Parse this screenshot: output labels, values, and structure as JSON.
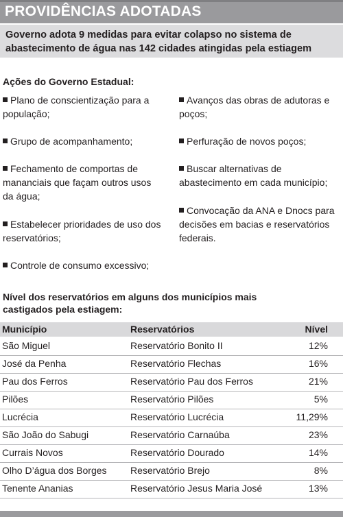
{
  "banner": {
    "title": "PROVIDÊNCIAS ADOTADAS"
  },
  "headline": {
    "line1": "Governo adota 9 medidas para evitar colapso no sistema de",
    "line2": "abastecimento de água nas 142 cidades atingidas pela estiagem"
  },
  "actions": {
    "title": "Ações do Governo Estadual:",
    "left": [
      {
        "lines": [
          "Plano de conscientização para a",
          "população;"
        ]
      },
      {
        "lines": [
          "Grupo de acompanhamento;"
        ]
      },
      {
        "lines": [
          "Fechamento de comportas de",
          "mananciais que façam outros usos",
          "da água;"
        ]
      },
      {
        "lines": [
          "Estabelecer prioridades de uso dos",
          "reservatórios;"
        ]
      },
      {
        "lines": [
          "Controle de consumo excessivo;"
        ]
      }
    ],
    "right": [
      {
        "lines": [
          "Avanços das obras de adutoras e",
          "poços;"
        ]
      },
      {
        "lines": [
          "Perfuração de novos poços;"
        ]
      },
      {
        "lines": [
          "Buscar alternativas de",
          "abastecimento em cada município;"
        ]
      },
      {
        "lines": [
          "Convocação da ANA e Dnocs para",
          "decisões em bacias e reservatórios",
          "federais."
        ]
      }
    ]
  },
  "table": {
    "title_line1": "Nível dos reservatórios em alguns dos  municípios mais",
    "title_line2": "castigados pela estiagem:",
    "headers": {
      "municipio": "Município",
      "reservatorios": "Reservatórios",
      "nivel": "Nível"
    },
    "rows": [
      {
        "municipio": "São Miguel",
        "reservatorio": "Reservatório Bonito II",
        "nivel": "12%"
      },
      {
        "municipio": "José da Penha",
        "reservatorio": "Reservatório Flechas",
        "nivel": "16%"
      },
      {
        "municipio": "Pau dos Ferros",
        "reservatorio": "Reservatório Pau dos Ferros",
        "nivel": "21%"
      },
      {
        "municipio": "Pilões",
        "reservatorio": "Reservatório Pilões",
        "nivel": "5%"
      },
      {
        "municipio": "Lucrécia",
        "reservatorio": "Reservatório Lucrécia",
        "nivel": "11,29%"
      },
      {
        "municipio": "São João do Sabugi",
        "reservatorio": "Reservatório Carnaúba",
        "nivel": "23%"
      },
      {
        "municipio": "Currais Novos",
        "reservatorio": "Reservatório Dourado",
        "nivel": "14%"
      },
      {
        "municipio": "Olho D’água dos Borges",
        "reservatorio": "Reservatório Brejo",
        "nivel": "8%"
      },
      {
        "municipio": "Tenente Ananias",
        "reservatorio": "Reservatório Jesus Maria José",
        "nivel": "13%"
      }
    ]
  },
  "colors": {
    "banner": "#9a9a9d",
    "headline_bg": "#dcdcde",
    "table_header_bg": "#d9d9db",
    "text": "#231f20"
  }
}
